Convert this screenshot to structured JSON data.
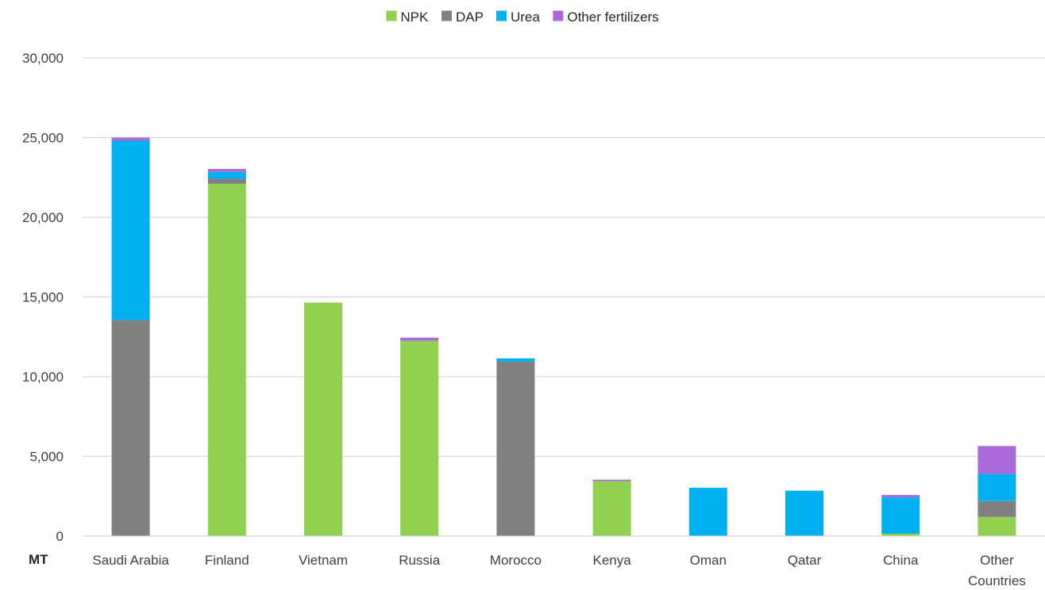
{
  "chart_data": {
    "type": "bar",
    "stacked": true,
    "categories": [
      "Saudi Arabia",
      "Finland",
      "Vietnam",
      "Russia",
      "Morocco",
      "Kenya",
      "Oman",
      "Qatar",
      "China",
      "Other Countries"
    ],
    "category_lines": [
      [
        "Saudi Arabia"
      ],
      [
        "Finland"
      ],
      [
        "Vietnam"
      ],
      [
        "Russia"
      ],
      [
        "Morocco"
      ],
      [
        "Kenya"
      ],
      [
        "Oman"
      ],
      [
        "Qatar"
      ],
      [
        "China"
      ],
      [
        "Other",
        "Countries"
      ]
    ],
    "series": [
      {
        "name": "NPK",
        "color": "#92d050",
        "values": [
          0,
          22100,
          14650,
          12250,
          0,
          3450,
          0,
          0,
          150,
          1200
        ]
      },
      {
        "name": "DAP",
        "color": "#808080",
        "values": [
          13550,
          320,
          0,
          0,
          10950,
          0,
          0,
          0,
          0,
          1000
        ]
      },
      {
        "name": "Urea",
        "color": "#00b0f0",
        "values": [
          11250,
          420,
          0,
          0,
          200,
          0,
          3030,
          2850,
          2280,
          1700
        ]
      },
      {
        "name": "Other fertilizers",
        "color": "#a86ad8",
        "values": [
          200,
          190,
          0,
          200,
          0,
          90,
          0,
          0,
          150,
          1750
        ]
      }
    ],
    "ylim": [
      0,
      30000
    ],
    "yticks": [
      0,
      5000,
      10000,
      15000,
      20000,
      25000,
      30000
    ],
    "ytick_labels": [
      "0",
      "5,000",
      "10,000",
      "15,000",
      "20,000",
      "25,000",
      "30,000"
    ],
    "unit_label": "MT",
    "legend_position": "top-center",
    "grid": true,
    "gridline_color": "#d9d9d9"
  }
}
